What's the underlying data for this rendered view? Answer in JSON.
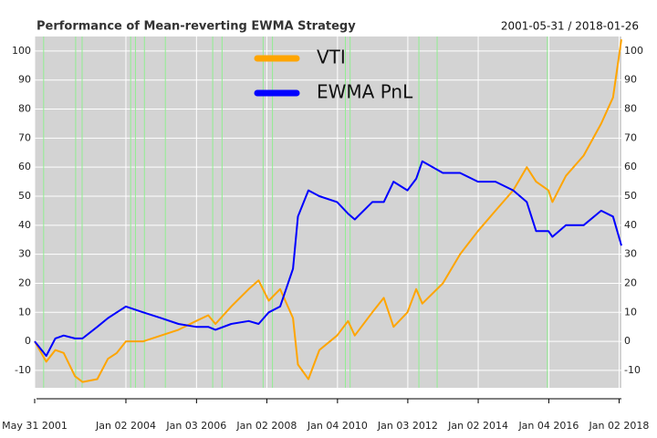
{
  "chart_data": {
    "type": "line",
    "title": "Performance of Mean-reverting EWMA Strategy",
    "subtitle": "2001-05-31 / 2018-01-26",
    "x": [
      "2001-05-31",
      "2001-09-28",
      "2001-12-31",
      "2002-03-28",
      "2002-07-23",
      "2002-10-09",
      "2003-03-11",
      "2003-06-30",
      "2003-09-30",
      "2004-01-02",
      "2004-06-30",
      "2004-12-31",
      "2005-06-30",
      "2005-12-30",
      "2006-05-05",
      "2006-07-18",
      "2006-12-29",
      "2007-06-29",
      "2007-10-09",
      "2008-01-22",
      "2008-05-19",
      "2008-09-30",
      "2008-11-20",
      "2009-03-09",
      "2009-06-30",
      "2009-12-31",
      "2010-04-23",
      "2010-07-02",
      "2010-12-31",
      "2011-04-29",
      "2011-08-08",
      "2011-12-30",
      "2012-03-30",
      "2012-06-01",
      "2012-12-31",
      "2013-06-28",
      "2013-12-31",
      "2014-06-30",
      "2014-12-31",
      "2015-05-21",
      "2015-08-25",
      "2015-12-31",
      "2016-02-11",
      "2016-06-30",
      "2016-12-30",
      "2017-06-30",
      "2017-10-31",
      "2018-01-26"
    ],
    "series": [
      {
        "name": "VTI",
        "color": "#ffa500",
        "values": [
          0,
          -7,
          -3,
          -4,
          -12,
          -14,
          -13,
          -6,
          -4,
          0,
          0,
          2,
          4,
          7,
          9,
          6,
          12,
          18,
          21,
          14,
          18,
          8,
          -8,
          -13,
          -3,
          2,
          7,
          2,
          10,
          15,
          5,
          10,
          18,
          13,
          20,
          30,
          38,
          45,
          52,
          60,
          55,
          52,
          48,
          57,
          64,
          75,
          84,
          104
        ]
      },
      {
        "name": "EWMA PnL",
        "color": "#0000ff",
        "values": [
          0,
          -5,
          1,
          2,
          1,
          1,
          5,
          8,
          10,
          12,
          10,
          8,
          6,
          5,
          5,
          4,
          6,
          7,
          6,
          10,
          12,
          25,
          43,
          52,
          50,
          48,
          44,
          42,
          48,
          48,
          55,
          52,
          56,
          62,
          58,
          58,
          55,
          55,
          52,
          48,
          38,
          38,
          36,
          40,
          40,
          45,
          43,
          33
        ]
      }
    ],
    "highlight_dates": [
      "2001-09-01",
      "2002-07-30",
      "2002-10-05",
      "2004-02-20",
      "2004-04-10",
      "2004-07-12",
      "2005-02-14",
      "2006-06-20",
      "2006-09-25",
      "2007-11-25",
      "2008-03-01",
      "2010-03-27",
      "2010-05-15",
      "2012-04-27",
      "2012-11-02",
      "2015-12-20"
    ],
    "highlight_color": "#90ee90",
    "xlim": [
      "2001-05-31",
      "2018-01-26"
    ],
    "xticks": [
      {
        "value": "2001-05-31",
        "label": "May 31 2001"
      },
      {
        "value": "2004-01-02",
        "label": "Jan 02 2004"
      },
      {
        "value": "2006-01-03",
        "label": "Jan 03 2006"
      },
      {
        "value": "2008-01-02",
        "label": "Jan 02 2008"
      },
      {
        "value": "2010-01-04",
        "label": "Jan 04 2010"
      },
      {
        "value": "2012-01-03",
        "label": "Jan 03 2012"
      },
      {
        "value": "2014-01-02",
        "label": "Jan 02 2014"
      },
      {
        "value": "2016-01-04",
        "label": "Jan 04 2016"
      },
      {
        "value": "2018-01-02",
        "label": "Jan 02 2018"
      }
    ],
    "ylim": [
      -16,
      105
    ],
    "yticks": [
      -10,
      0,
      10,
      20,
      30,
      40,
      50,
      60,
      70,
      80,
      90,
      100
    ],
    "grid": true,
    "legend": "top"
  }
}
